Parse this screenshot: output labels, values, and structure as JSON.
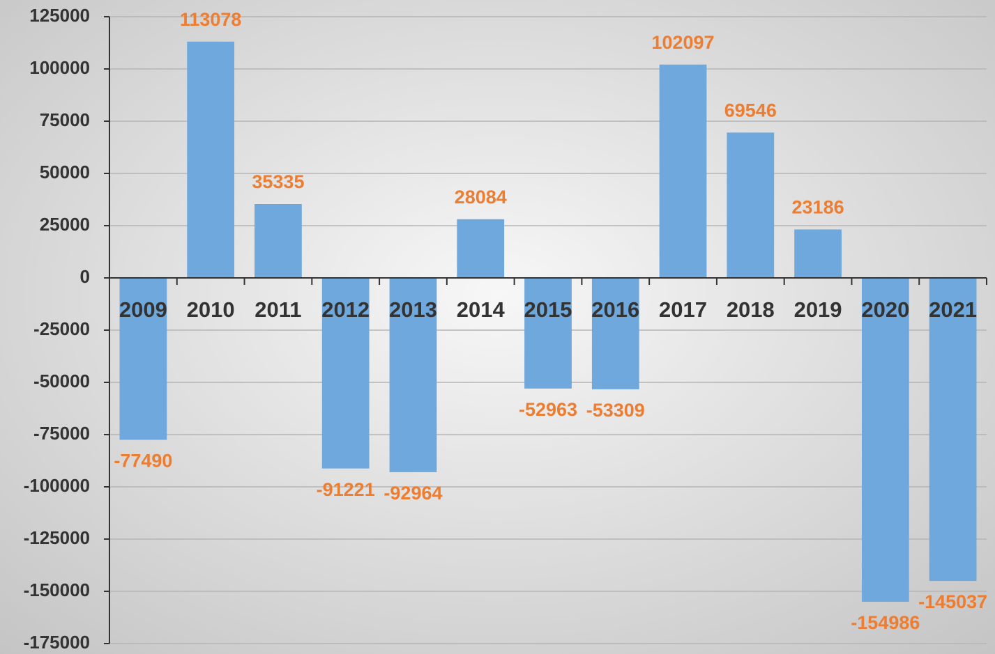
{
  "chart_data": {
    "type": "bar",
    "categories": [
      "2009",
      "2010",
      "2011",
      "2012",
      "2013",
      "2014",
      "2015",
      "2016",
      "2017",
      "2018",
      "2019",
      "2020",
      "2021"
    ],
    "values": [
      -77490,
      113078,
      35335,
      -91221,
      -92964,
      28084,
      -52963,
      -53309,
      102097,
      69546,
      23186,
      -154986,
      -145037
    ],
    "color": "#6fa8dc",
    "label_color": "#ed7d31",
    "ylim": [
      -175000,
      125000
    ],
    "yticks": [
      -175000,
      -150000,
      -125000,
      -100000,
      -75000,
      -50000,
      -25000,
      0,
      25000,
      50000,
      75000,
      100000,
      125000
    ],
    "grid": true
  }
}
